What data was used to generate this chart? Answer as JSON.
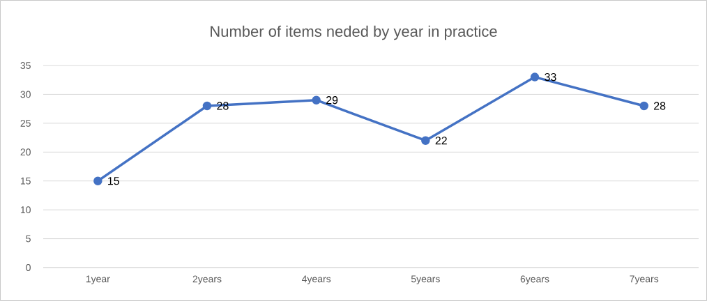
{
  "chart_data": {
    "type": "line",
    "title": "Number of items neded by year in practice",
    "categories": [
      "1year",
      "2years",
      "4years",
      "5years",
      "6years",
      "7years"
    ],
    "values": [
      15,
      28,
      29,
      22,
      33,
      28
    ],
    "color": "#4472c4",
    "ylim": [
      0,
      35
    ],
    "yticks": [
      0,
      5,
      10,
      15,
      20,
      25,
      30,
      35
    ],
    "grid": "y",
    "marker": "circle",
    "data_labels": true
  }
}
